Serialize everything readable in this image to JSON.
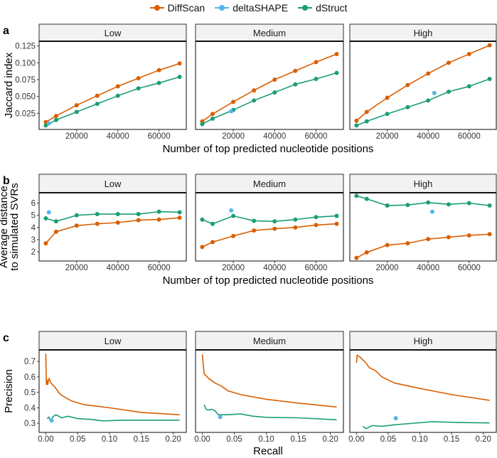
{
  "legend": [
    {
      "name": "DiffScan",
      "color": "#D95F02"
    },
    {
      "name": "deltaSHAPE",
      "color": "#56B4E9"
    },
    {
      "name": "dStruct",
      "color": "#1B9E77"
    }
  ],
  "chart_data": [
    {
      "panel_letter": "a",
      "type": "line",
      "facets": [
        "Low",
        "Medium",
        "High"
      ],
      "xlabel": "Number of top predicted nucleotide positions",
      "ylabel": [
        "Jaccard index"
      ],
      "xticks": [
        20000,
        40000,
        60000
      ],
      "xticklabels": [
        "20000",
        "40000",
        "60000"
      ],
      "yticks": [
        0.025,
        0.05,
        0.075,
        0.1,
        0.125
      ],
      "yticklabels": [
        "0.025",
        "0.050",
        "0.075",
        "0.100",
        "0.125"
      ],
      "xlim": [
        5000,
        70000
      ],
      "ylim": [
        0.007,
        0.126
      ],
      "x": [
        5000,
        10000,
        20000,
        30000,
        40000,
        50000,
        60000,
        70000
      ],
      "series": {
        "Low": {
          "DiffScan": [
            0.012,
            0.021,
            0.037,
            0.051,
            0.065,
            0.077,
            0.089,
            0.099
          ],
          "dStruct": [
            0.007,
            0.015,
            0.027,
            0.039,
            0.051,
            0.062,
            0.07,
            0.079
          ],
          "deltaSHAPE": [
            [
              6500,
              0.01
            ]
          ]
        },
        "Medium": {
          "DiffScan": [
            0.013,
            0.024,
            0.042,
            0.059,
            0.075,
            0.088,
            0.101,
            0.113
          ],
          "dStruct": [
            0.009,
            0.017,
            0.03,
            0.044,
            0.056,
            0.068,
            0.076,
            0.085
          ],
          "deltaSHAPE": [
            [
              19000,
              0.028
            ]
          ]
        },
        "High": {
          "DiffScan": [
            0.014,
            0.027,
            0.048,
            0.067,
            0.084,
            0.1,
            0.113,
            0.126
          ],
          "dStruct": [
            0.007,
            0.013,
            0.024,
            0.034,
            0.044,
            0.057,
            0.065,
            0.076
          ],
          "deltaSHAPE": [
            [
              43000,
              0.055
            ]
          ]
        }
      },
      "points": true
    },
    {
      "panel_letter": "b",
      "type": "line",
      "facets": [
        "Low",
        "Medium",
        "High"
      ],
      "xlabel": "Number of top predicted nucleotide positions",
      "ylabel": [
        "Average distance",
        "to simulated SVRs"
      ],
      "xticks": [
        20000,
        40000,
        60000
      ],
      "xticklabels": [
        "20000",
        "40000",
        "60000"
      ],
      "yticks": [
        2,
        3,
        4,
        5,
        6
      ],
      "yticklabels": [
        "2",
        "3",
        "4",
        "5",
        "6"
      ],
      "xlim": [
        5000,
        70000
      ],
      "ylim": [
        1.5,
        6.6
      ],
      "x": [
        5000,
        10000,
        20000,
        30000,
        40000,
        50000,
        60000,
        70000
      ],
      "series": {
        "Low": {
          "DiffScan": [
            2.7,
            3.65,
            4.15,
            4.3,
            4.4,
            4.6,
            4.65,
            4.8
          ],
          "dStruct": [
            4.75,
            4.5,
            5.0,
            5.1,
            5.1,
            5.1,
            5.3,
            5.25
          ],
          "deltaSHAPE": [
            [
              6500,
              5.25
            ]
          ]
        },
        "Medium": {
          "DiffScan": [
            2.4,
            2.8,
            3.3,
            3.75,
            3.9,
            4.0,
            4.2,
            4.3
          ],
          "dStruct": [
            4.65,
            4.3,
            4.95,
            4.55,
            4.5,
            4.65,
            4.85,
            4.95
          ],
          "deltaSHAPE": [
            [
              19000,
              5.4
            ]
          ]
        },
        "High": {
          "DiffScan": [
            1.5,
            1.95,
            2.55,
            2.7,
            3.05,
            3.2,
            3.35,
            3.45
          ],
          "dStruct": [
            6.6,
            6.35,
            5.8,
            5.85,
            6.05,
            5.9,
            6.0,
            5.8
          ],
          "deltaSHAPE": [
            [
              42000,
              5.3
            ]
          ]
        }
      },
      "points": true
    },
    {
      "panel_letter": "c",
      "type": "line",
      "facets": [
        "Low",
        "Medium",
        "High"
      ],
      "xlabel": "Recall",
      "ylabel": [
        "Precision"
      ],
      "xticks": [
        0,
        0.05,
        0.1,
        0.15,
        0.2
      ],
      "xticklabels": [
        "0.00",
        "0.05",
        "0.10",
        "0.15",
        "0.20"
      ],
      "yticks": [
        0.3,
        0.4,
        0.5,
        0.6,
        0.7
      ],
      "yticklabels": [
        "0.3",
        "0.4",
        "0.5",
        "0.6",
        "0.7"
      ],
      "xlim": [
        0,
        0.21
      ],
      "ylim": [
        0.265,
        0.75
      ],
      "series_xy": {
        "Low": {
          "DiffScan": [
            [
              0,
              0.75
            ],
            [
              0.001,
              0.55
            ],
            [
              0.002,
              0.58
            ],
            [
              0.003,
              0.55
            ],
            [
              0.005,
              0.59
            ],
            [
              0.008,
              0.56
            ],
            [
              0.015,
              0.53
            ],
            [
              0.02,
              0.5
            ],
            [
              0.025,
              0.48
            ],
            [
              0.04,
              0.445
            ],
            [
              0.06,
              0.42
            ],
            [
              0.1,
              0.4
            ],
            [
              0.15,
              0.37
            ],
            [
              0.21,
              0.355
            ]
          ],
          "dStruct": [
            [
              0.002,
              0.33
            ],
            [
              0.005,
              0.34
            ],
            [
              0.007,
              0.315
            ],
            [
              0.012,
              0.345
            ],
            [
              0.016,
              0.355
            ],
            [
              0.025,
              0.335
            ],
            [
              0.035,
              0.345
            ],
            [
              0.05,
              0.33
            ],
            [
              0.07,
              0.325
            ],
            [
              0.09,
              0.315
            ],
            [
              0.12,
              0.32
            ],
            [
              0.21,
              0.32
            ]
          ],
          "deltaSHAPE": [
            [
              0.009,
              0.318
            ]
          ]
        },
        "Medium": {
          "DiffScan": [
            [
              0,
              0.745
            ],
            [
              0.003,
              0.62
            ],
            [
              0.01,
              0.59
            ],
            [
              0.02,
              0.56
            ],
            [
              0.03,
              0.54
            ],
            [
              0.04,
              0.51
            ],
            [
              0.06,
              0.485
            ],
            [
              0.1,
              0.455
            ],
            [
              0.15,
              0.43
            ],
            [
              0.21,
              0.405
            ]
          ],
          "dStruct": [
            [
              0.003,
              0.42
            ],
            [
              0.006,
              0.39
            ],
            [
              0.01,
              0.385
            ],
            [
              0.015,
              0.39
            ],
            [
              0.02,
              0.38
            ],
            [
              0.025,
              0.355
            ],
            [
              0.04,
              0.355
            ],
            [
              0.06,
              0.36
            ],
            [
              0.08,
              0.345
            ],
            [
              0.1,
              0.338
            ],
            [
              0.15,
              0.335
            ],
            [
              0.21,
              0.322
            ]
          ],
          "deltaSHAPE": [
            [
              0.028,
              0.34
            ]
          ]
        },
        "High": {
          "DiffScan": [
            [
              0,
              0.69
            ],
            [
              0.001,
              0.74
            ],
            [
              0.005,
              0.73
            ],
            [
              0.01,
              0.71
            ],
            [
              0.015,
              0.69
            ],
            [
              0.02,
              0.66
            ],
            [
              0.03,
              0.64
            ],
            [
              0.04,
              0.6
            ],
            [
              0.06,
              0.56
            ],
            [
              0.1,
              0.525
            ],
            [
              0.15,
              0.485
            ],
            [
              0.21,
              0.448
            ]
          ],
          "dStruct": [
            [
              0.01,
              0.28
            ],
            [
              0.015,
              0.265
            ],
            [
              0.025,
              0.285
            ],
            [
              0.04,
              0.28
            ],
            [
              0.06,
              0.29
            ],
            [
              0.09,
              0.3
            ],
            [
              0.12,
              0.31
            ],
            [
              0.16,
              0.305
            ],
            [
              0.21,
              0.302
            ]
          ],
          "deltaSHAPE": [
            [
              0.062,
              0.333
            ]
          ]
        }
      },
      "points": false
    }
  ]
}
